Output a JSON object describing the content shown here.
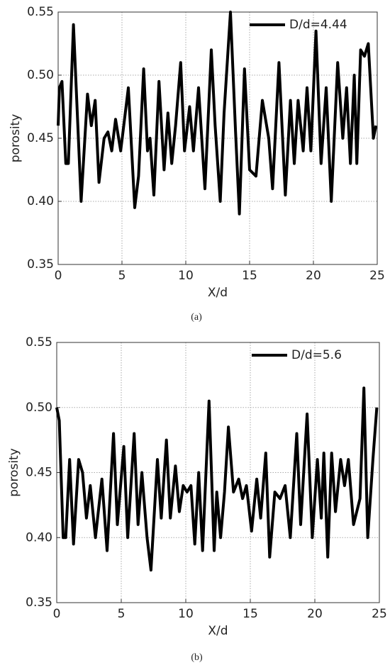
{
  "chart_data": [
    {
      "type": "line",
      "caption": "(a)",
      "xlabel": "X/d",
      "ylabel": "porosity",
      "grid": true,
      "legend": "upper right",
      "xlim": [
        0,
        25
      ],
      "xticks": [
        0,
        5,
        10,
        15,
        20,
        25
      ],
      "ylim": [
        0.35,
        0.55
      ],
      "yticks": [
        0.35,
        {
          "value": 0.4,
          "label": "0.40"
        },
        0.45,
        {
          "value": 0.5,
          "label": "0.50"
        },
        0.55
      ],
      "series": [
        {
          "name": "D/d=4.44",
          "color": "#000000",
          "x": [
            0,
            0.1,
            0.3,
            0.6,
            0.8,
            1.2,
            1.8,
            2.3,
            2.6,
            2.9,
            3.2,
            3.6,
            3.9,
            4.2,
            4.5,
            4.9,
            5.5,
            6.0,
            6.3,
            6.7,
            7.0,
            7.2,
            7.5,
            7.9,
            8.3,
            8.6,
            8.9,
            9.2,
            9.6,
            9.9,
            10.3,
            10.6,
            11.0,
            11.5,
            12.0,
            12.3,
            12.7,
            13.0,
            13.5,
            13.9,
            14.2,
            14.6,
            15.0,
            15.5,
            16.0,
            16.5,
            16.8,
            17.3,
            17.8,
            18.2,
            18.5,
            18.8,
            19.2,
            19.5,
            19.8,
            20.2,
            20.6,
            21.0,
            21.4,
            21.9,
            22.3,
            22.6,
            22.9,
            23.2,
            23.4,
            23.7,
            24.0,
            24.3,
            24.7,
            24.9
          ],
          "values": [
            0.46,
            0.49,
            0.495,
            0.43,
            0.43,
            0.54,
            0.4,
            0.485,
            0.46,
            0.48,
            0.415,
            0.45,
            0.455,
            0.44,
            0.465,
            0.44,
            0.49,
            0.395,
            0.42,
            0.505,
            0.44,
            0.45,
            0.405,
            0.495,
            0.425,
            0.47,
            0.43,
            0.46,
            0.51,
            0.44,
            0.475,
            0.44,
            0.49,
            0.41,
            0.52,
            0.46,
            0.4,
            0.47,
            0.55,
            0.455,
            0.39,
            0.505,
            0.425,
            0.42,
            0.48,
            0.45,
            0.41,
            0.51,
            0.405,
            0.48,
            0.43,
            0.48,
            0.44,
            0.49,
            0.44,
            0.535,
            0.43,
            0.49,
            0.4,
            0.51,
            0.45,
            0.49,
            0.43,
            0.5,
            0.43,
            0.52,
            0.515,
            0.525,
            0.45,
            0.46
          ]
        }
      ]
    },
    {
      "type": "line",
      "caption": "(b)",
      "xlabel": "X/d",
      "ylabel": "porosity",
      "grid": true,
      "legend": "upper right",
      "xlim": [
        0,
        25
      ],
      "xticks": [
        0,
        5,
        10,
        15,
        20,
        25
      ],
      "ylim": [
        0.35,
        0.55
      ],
      "yticks": [
        0.35,
        {
          "value": 0.4,
          "label": "0.40"
        },
        0.45,
        {
          "value": 0.5,
          "label": "0.50"
        },
        0.55
      ],
      "series": [
        {
          "name": "D/d=5.6",
          "color": "#000000",
          "x": [
            0,
            0.2,
            0.5,
            0.7,
            1.0,
            1.3,
            1.7,
            2.0,
            2.3,
            2.6,
            3.0,
            3.5,
            3.9,
            4.4,
            4.7,
            5.2,
            5.5,
            6.0,
            6.3,
            6.6,
            7.0,
            7.3,
            7.8,
            8.1,
            8.5,
            8.8,
            9.2,
            9.5,
            9.8,
            10.1,
            10.4,
            10.7,
            11.0,
            11.3,
            11.8,
            12.2,
            12.4,
            12.7,
            13.0,
            13.3,
            13.7,
            14.1,
            14.4,
            14.7,
            15.1,
            15.5,
            15.8,
            16.2,
            16.5,
            16.9,
            17.3,
            17.7,
            18.1,
            18.6,
            18.9,
            19.4,
            19.8,
            20.2,
            20.5,
            20.7,
            21.0,
            21.3,
            21.6,
            22.0,
            22.3,
            22.6,
            23.0,
            23.5,
            23.8,
            24.1,
            24.5,
            24.8
          ],
          "values": [
            0.5,
            0.49,
            0.4,
            0.4,
            0.46,
            0.395,
            0.46,
            0.45,
            0.415,
            0.44,
            0.4,
            0.445,
            0.39,
            0.48,
            0.41,
            0.47,
            0.4,
            0.48,
            0.41,
            0.45,
            0.4,
            0.375,
            0.46,
            0.415,
            0.475,
            0.415,
            0.455,
            0.42,
            0.44,
            0.435,
            0.44,
            0.395,
            0.45,
            0.39,
            0.505,
            0.39,
            0.435,
            0.4,
            0.435,
            0.485,
            0.435,
            0.445,
            0.43,
            0.44,
            0.405,
            0.445,
            0.415,
            0.465,
            0.385,
            0.435,
            0.43,
            0.44,
            0.4,
            0.48,
            0.41,
            0.495,
            0.4,
            0.46,
            0.415,
            0.465,
            0.385,
            0.465,
            0.42,
            0.46,
            0.44,
            0.46,
            0.41,
            0.43,
            0.515,
            0.4,
            0.46,
            0.5
          ]
        }
      ]
    }
  ]
}
